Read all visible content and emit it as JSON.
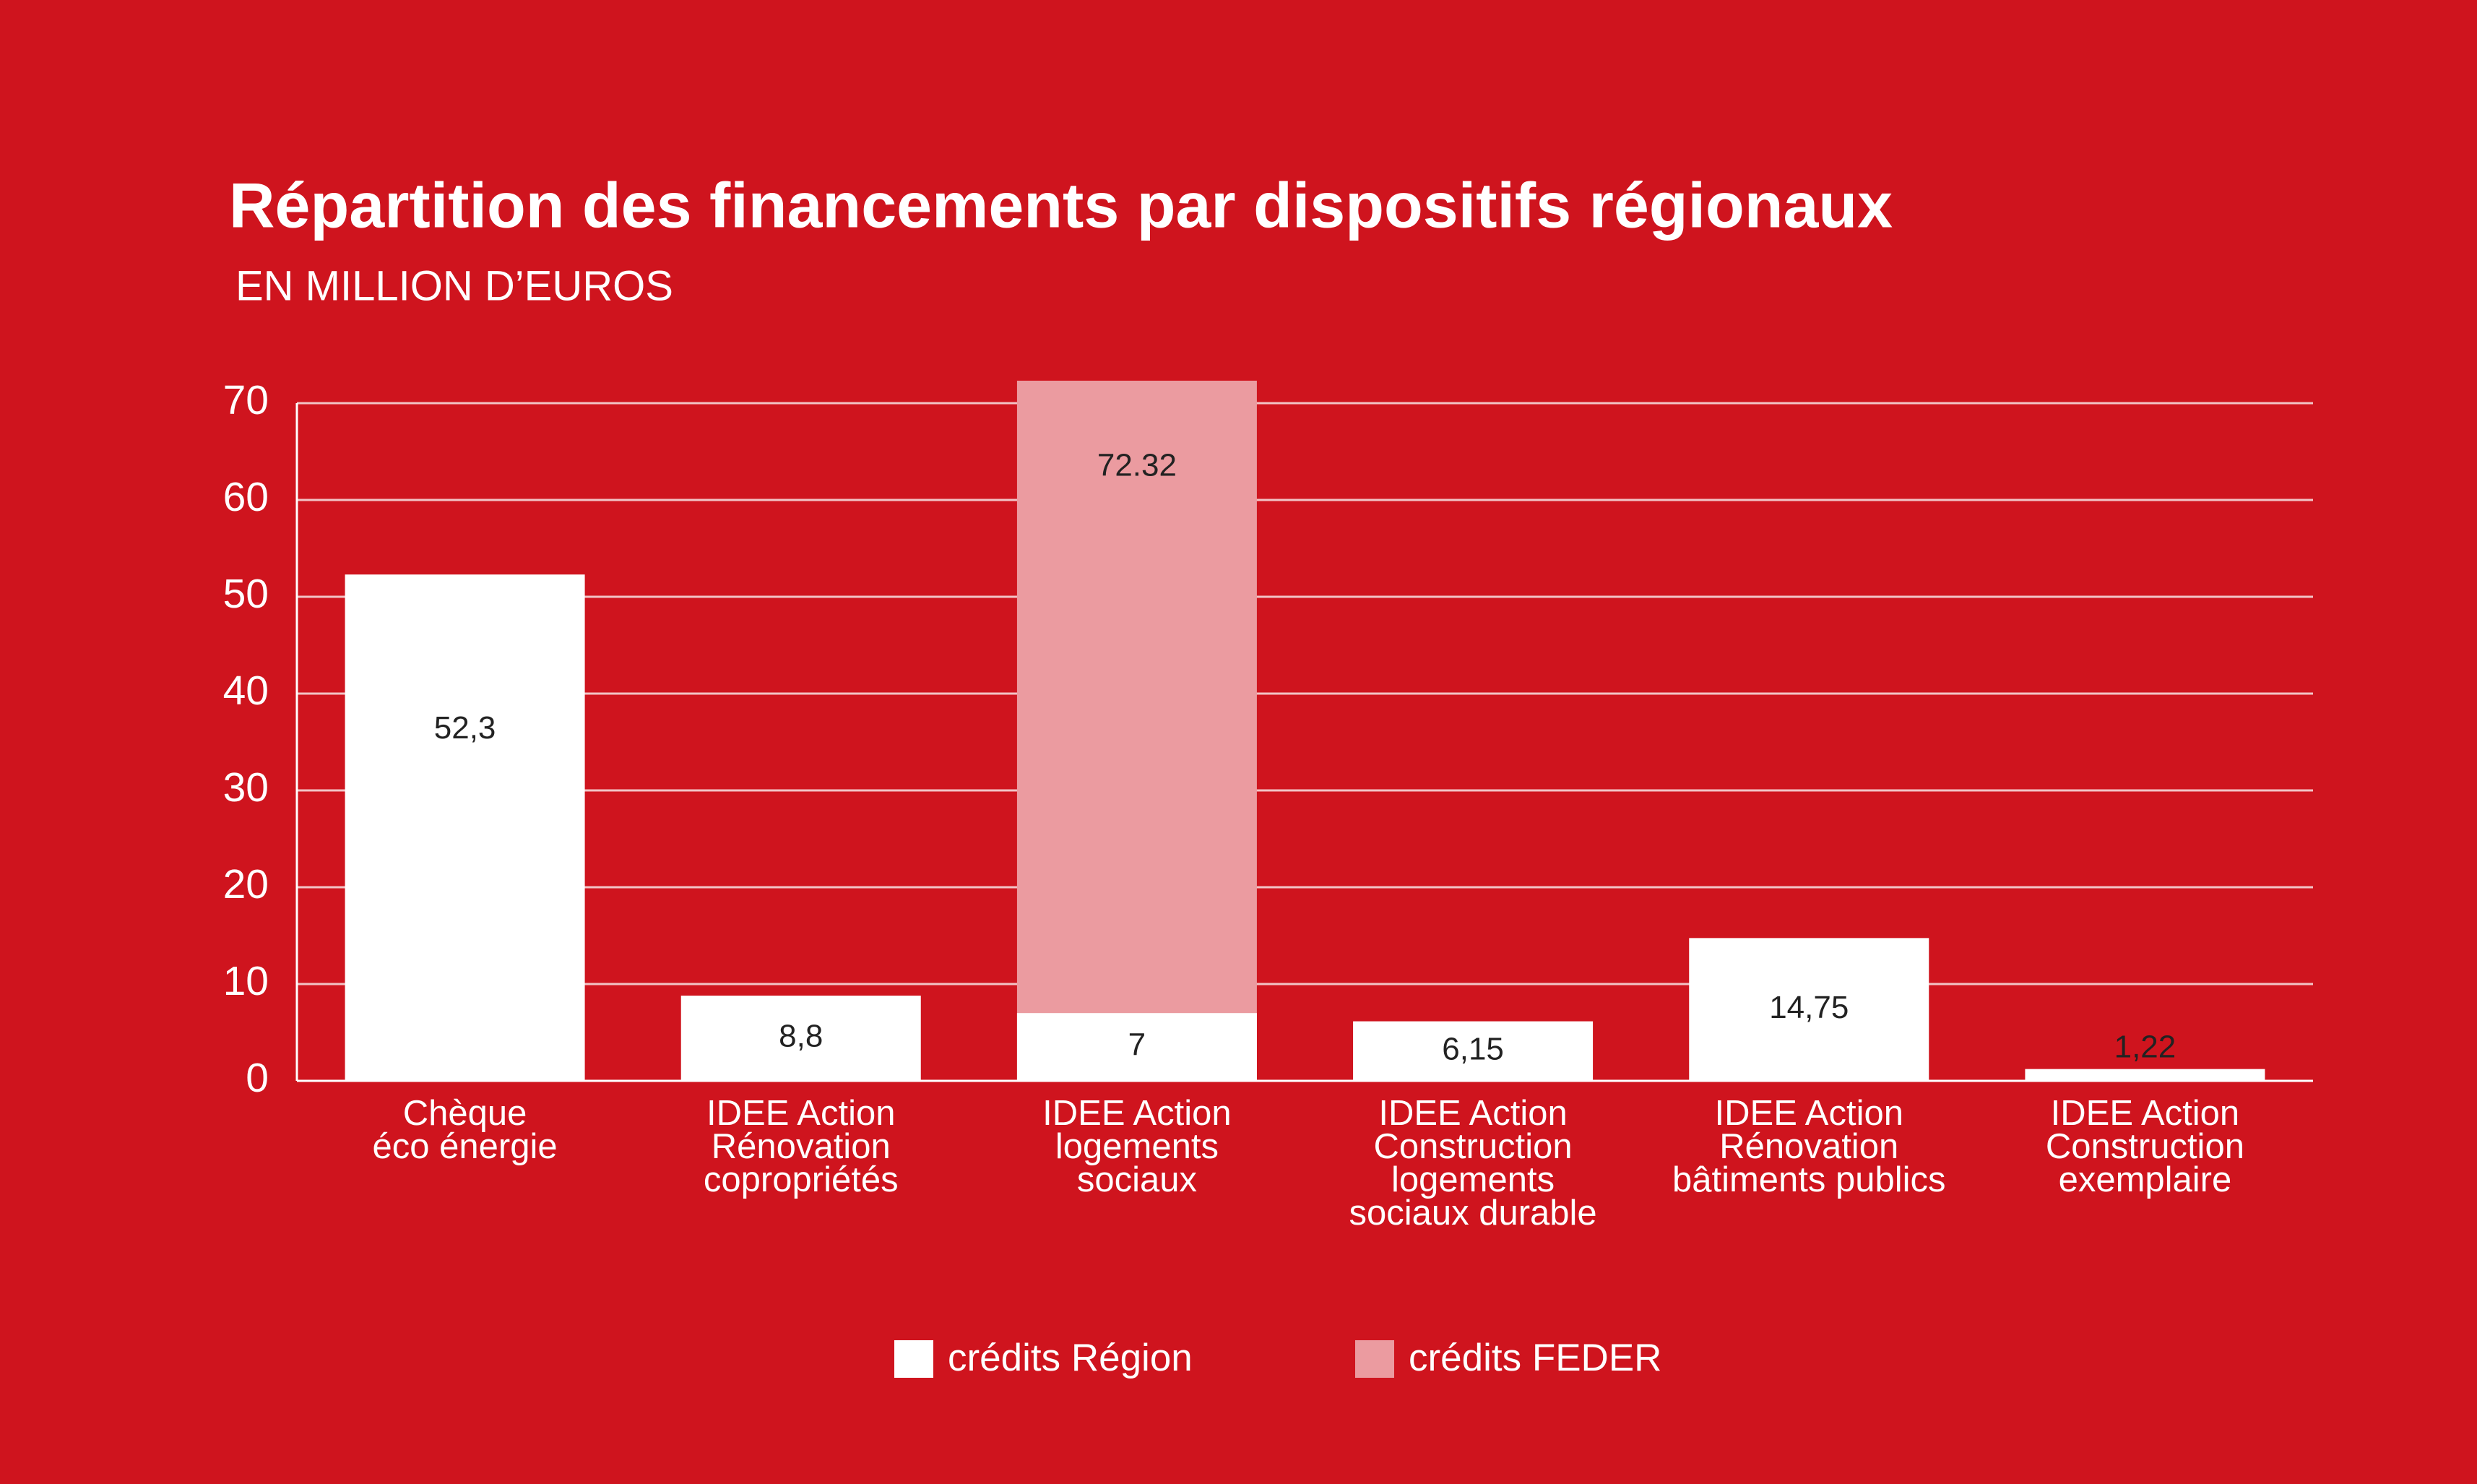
{
  "chart_data": {
    "type": "bar",
    "title": "Répartition des financements par dispositifs régionaux",
    "subtitle": "EN MILLION D’EUROS",
    "categories": [
      "Chèque\néco énergie",
      "IDEE Action\nRénovation\ncopropriétés",
      "IDEE Action\nlogements\nsociaux",
      "IDEE Action\nConstruction\nlogements\nsociaux durable",
      "IDEE Action\nRénovation\nbâtiments publics",
      "IDEE Action\nConstruction\nexemplaire"
    ],
    "series": [
      {
        "name": "crédits FEDER",
        "color": "#eb9ba0",
        "values": [
          null,
          null,
          72.32,
          null,
          null,
          null
        ]
      },
      {
        "name": "crédits Région",
        "color": "#ffffff",
        "values": [
          52.3,
          8.8,
          7,
          6.15,
          14.75,
          1.22
        ],
        "value_labels": [
          "52,3",
          "8,8",
          "7",
          "6,15",
          "14,75",
          "1,22"
        ]
      }
    ],
    "ylim": [
      0,
      70
    ],
    "yticks": [
      0,
      10,
      20,
      30,
      40,
      50,
      60,
      70
    ],
    "grid": true,
    "legend": "bottom"
  }
}
